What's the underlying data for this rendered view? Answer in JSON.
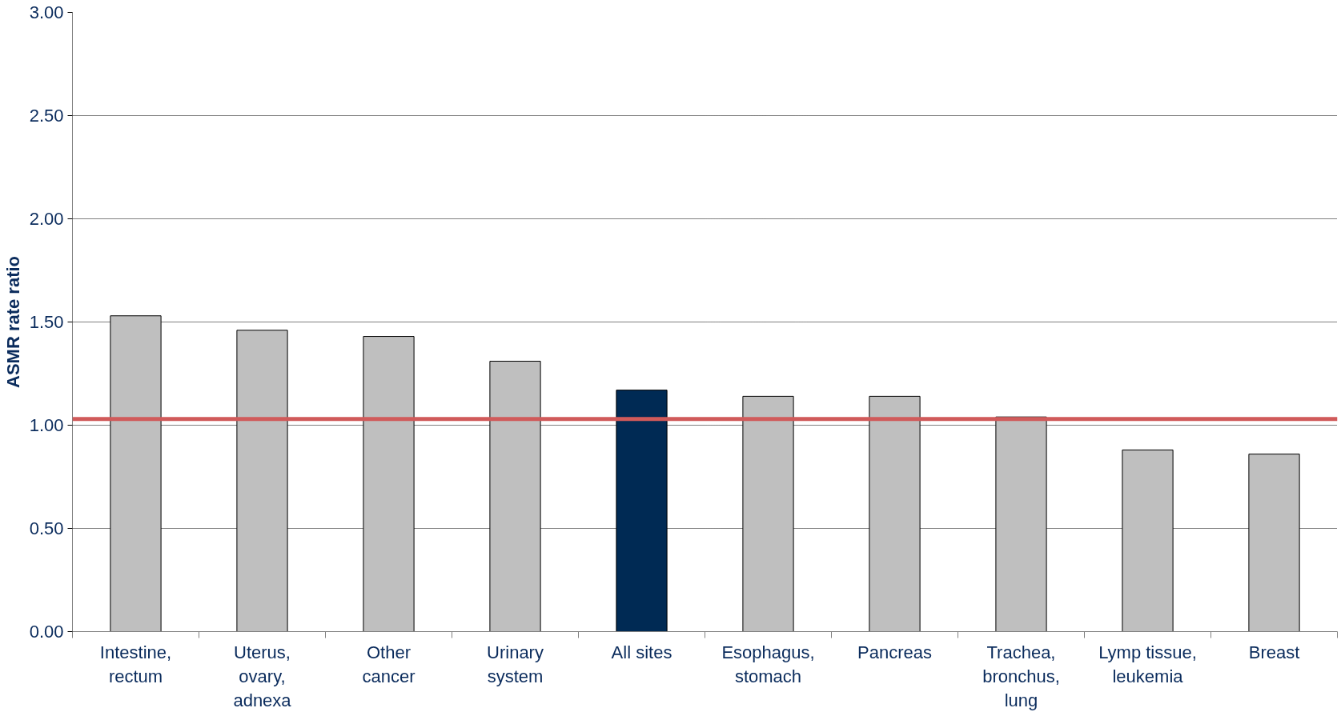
{
  "chart_data": {
    "type": "bar",
    "ylabel": "ASMR rate ratio",
    "categories": [
      "Intestine,\nrectum",
      "Uterus,\novary,\nadnexa",
      "Other\ncancer",
      "Urinary\nsystem",
      "All sites",
      "Esophagus,\nstomach",
      "Pancreas",
      "Trachea,\nbronchus,\nlung",
      "Lymp tissue,\nleukemia",
      "Breast"
    ],
    "values": [
      1.53,
      1.46,
      1.43,
      1.31,
      1.17,
      1.14,
      1.14,
      1.04,
      0.88,
      0.86
    ],
    "colors": [
      "#bfbfbf",
      "#bfbfbf",
      "#bfbfbf",
      "#bfbfbf",
      "#002a54",
      "#bfbfbf",
      "#bfbfbf",
      "#bfbfbf",
      "#bfbfbf",
      "#bfbfbf"
    ],
    "ylim": [
      0,
      3
    ],
    "yticks": [
      {
        "value": 0,
        "label": "0.00"
      },
      {
        "value": 0.5,
        "label": "0.50"
      },
      {
        "value": 1,
        "label": "1.00"
      },
      {
        "value": 1.5,
        "label": "1.50"
      },
      {
        "value": 2,
        "label": "2.00"
      },
      {
        "value": 2.5,
        "label": "2.50"
      },
      {
        "value": 3,
        "label": "3.00"
      }
    ],
    "grid": "y",
    "ref_lines": [
      {
        "axis": "y",
        "value": 1.03,
        "color": "#d05a5a"
      }
    ]
  }
}
